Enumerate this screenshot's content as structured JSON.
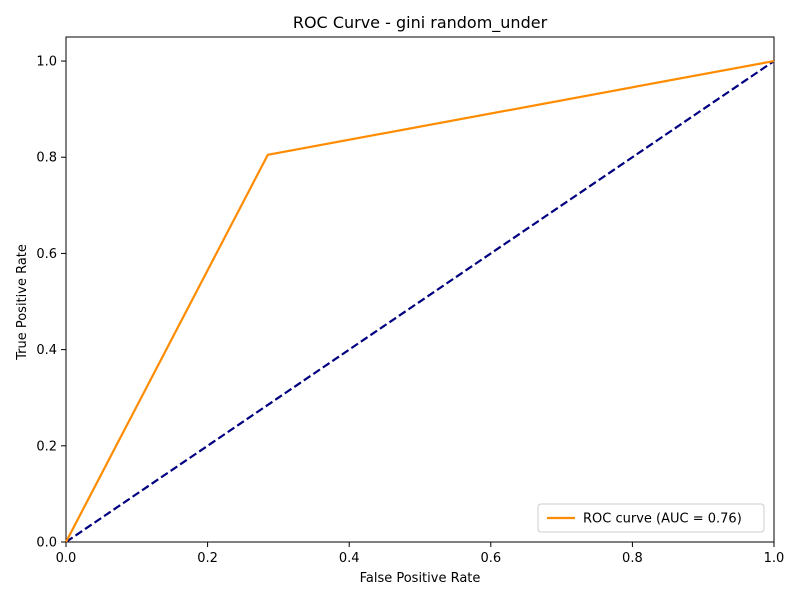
{
  "chart_data": {
    "type": "line",
    "title": "ROC Curve - gini random_under",
    "xlabel": "False Positive Rate",
    "ylabel": "True Positive Rate",
    "xlim": [
      0.0,
      1.0
    ],
    "ylim": [
      0.0,
      1.05
    ],
    "xticks": [
      "0.0",
      "0.2",
      "0.4",
      "0.6",
      "0.8",
      "1.0"
    ],
    "yticks": [
      "0.0",
      "0.2",
      "0.4",
      "0.6",
      "0.8",
      "1.0"
    ],
    "grid": false,
    "legend_position": "lower-right",
    "series": [
      {
        "name": "ROC curve (AUC = 0.76)",
        "color": "#ff8c00",
        "style": "solid",
        "x": [
          0.0,
          0.285,
          1.0
        ],
        "y": [
          0.0,
          0.805,
          1.0
        ]
      },
      {
        "color": "#000080",
        "style": "dashed",
        "x": [
          0.0,
          1.0
        ],
        "y": [
          0.0,
          1.0
        ]
      }
    ]
  }
}
